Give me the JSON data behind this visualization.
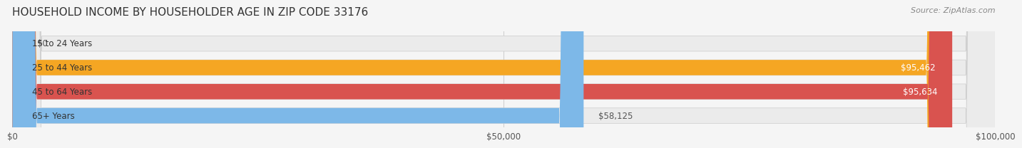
{
  "title": "HOUSEHOLD INCOME BY HOUSEHOLDER AGE IN ZIP CODE 33176",
  "source": "Source: ZipAtlas.com",
  "categories": [
    "15 to 24 Years",
    "25 to 44 Years",
    "45 to 64 Years",
    "65+ Years"
  ],
  "values": [
    0,
    95462,
    95634,
    58125
  ],
  "bar_colors": [
    "#f08080",
    "#f5a623",
    "#d9534f",
    "#7db8e8"
  ],
  "bar_edge_colors": [
    "#e06060",
    "#e09010",
    "#c04040",
    "#5098c8"
  ],
  "value_labels": [
    "$0",
    "$95,462",
    "$95,634",
    "$58,125"
  ],
  "x_ticks": [
    0,
    50000,
    100000
  ],
  "x_tick_labels": [
    "$0",
    "$50,000",
    "$100,000"
  ],
  "xlim": [
    0,
    100000
  ],
  "background_color": "#f5f5f5",
  "bar_background_color": "#ebebeb",
  "label_fontsize": 8.5,
  "value_fontsize": 8.5,
  "title_fontsize": 11,
  "source_fontsize": 8
}
